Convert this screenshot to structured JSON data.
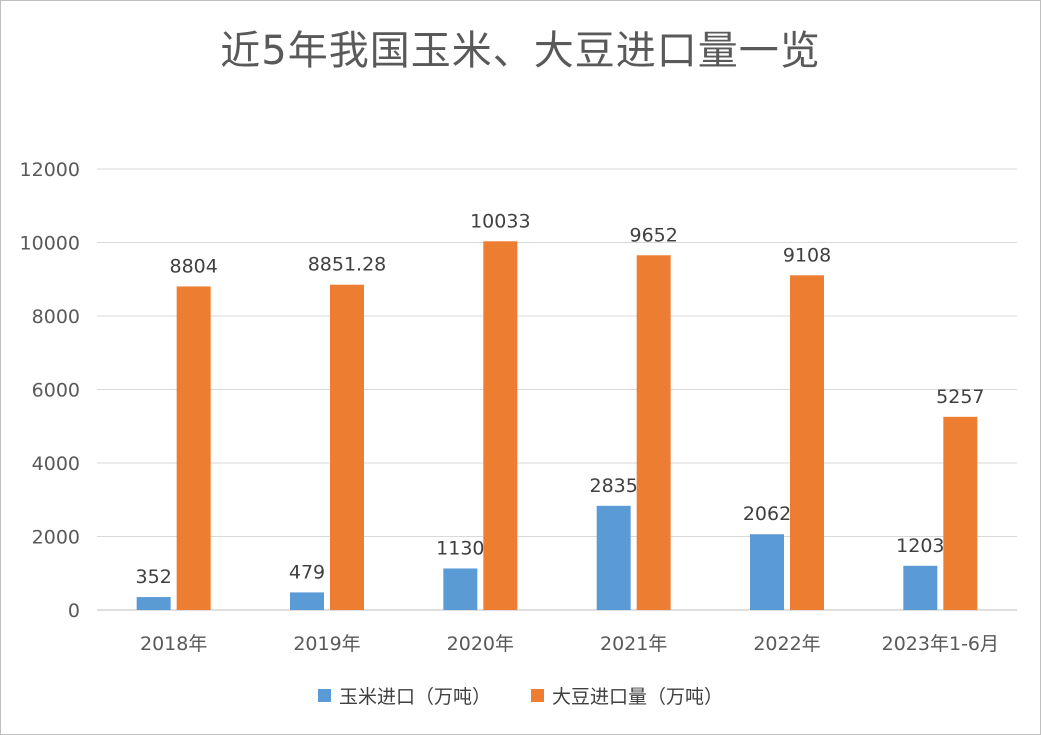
{
  "chart_data": {
    "type": "bar",
    "title": "近5年我国玉米、大豆进口量一览",
    "categories": [
      "2018年",
      "2019年",
      "2020年",
      "2021年",
      "2022年",
      "2023年1-6月"
    ],
    "series": [
      {
        "name": "玉米进口（万吨）",
        "color": "#5B9BD5",
        "values": [
          352,
          479,
          1130,
          2835,
          2062,
          1203
        ],
        "labels": [
          "352",
          "479",
          "1130",
          "2835",
          "2062",
          "1203"
        ]
      },
      {
        "name": "大豆进口量（万吨）",
        "color": "#ED7D31",
        "values": [
          8804,
          8851.28,
          10033,
          9652,
          9108,
          5257
        ],
        "labels": [
          "8804",
          "8851.28",
          "10033",
          "9652",
          "9108",
          "5257"
        ]
      }
    ],
    "yticks": [
      "0",
      "2000",
      "4000",
      "6000",
      "8000",
      "10000",
      "12000"
    ],
    "ylim": [
      0,
      12000
    ],
    "grid": true,
    "legend": "bottom"
  }
}
